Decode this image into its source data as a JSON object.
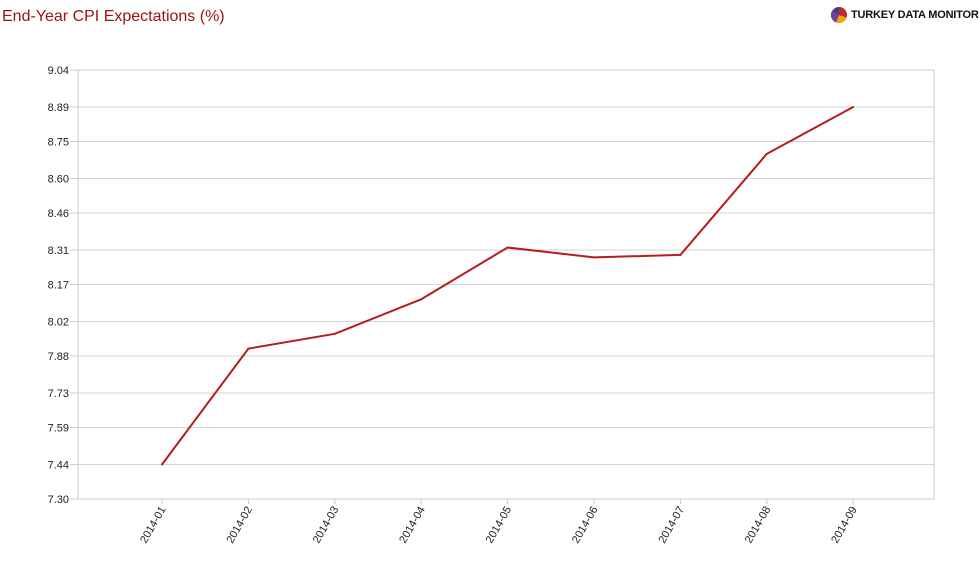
{
  "header": {
    "title": "End-Year CPI Expectations (%)",
    "brand": "TURKEY DATA MONITOR"
  },
  "icons": {
    "brand_logo": "pie-chart-logo-icon"
  },
  "colors": {
    "title": "#9b1111",
    "line": "#b71c1c",
    "grid": "#d4d4d4",
    "frame": "#cccccc"
  },
  "chart_data": {
    "type": "line",
    "title": "End-Year CPI Expectations (%)",
    "xlabel": "",
    "ylabel": "",
    "categories": [
      "2014-01",
      "2014-02",
      "2014-03",
      "2014-04",
      "2014-05",
      "2014-06",
      "2014-07",
      "2014-08",
      "2014-09"
    ],
    "series": [
      {
        "values": [
          7.44,
          7.91,
          7.97,
          8.11,
          8.32,
          8.28,
          8.29,
          8.7,
          8.89
        ]
      }
    ],
    "y_ticks": [
      "7.30",
      "7.44",
      "7.59",
      "7.73",
      "7.88",
      "8.02",
      "8.17",
      "8.31",
      "8.46",
      "8.60",
      "8.75",
      "8.89",
      "9.04"
    ],
    "ylim": [
      7.3,
      9.04
    ],
    "grid": true,
    "legend": "none"
  }
}
